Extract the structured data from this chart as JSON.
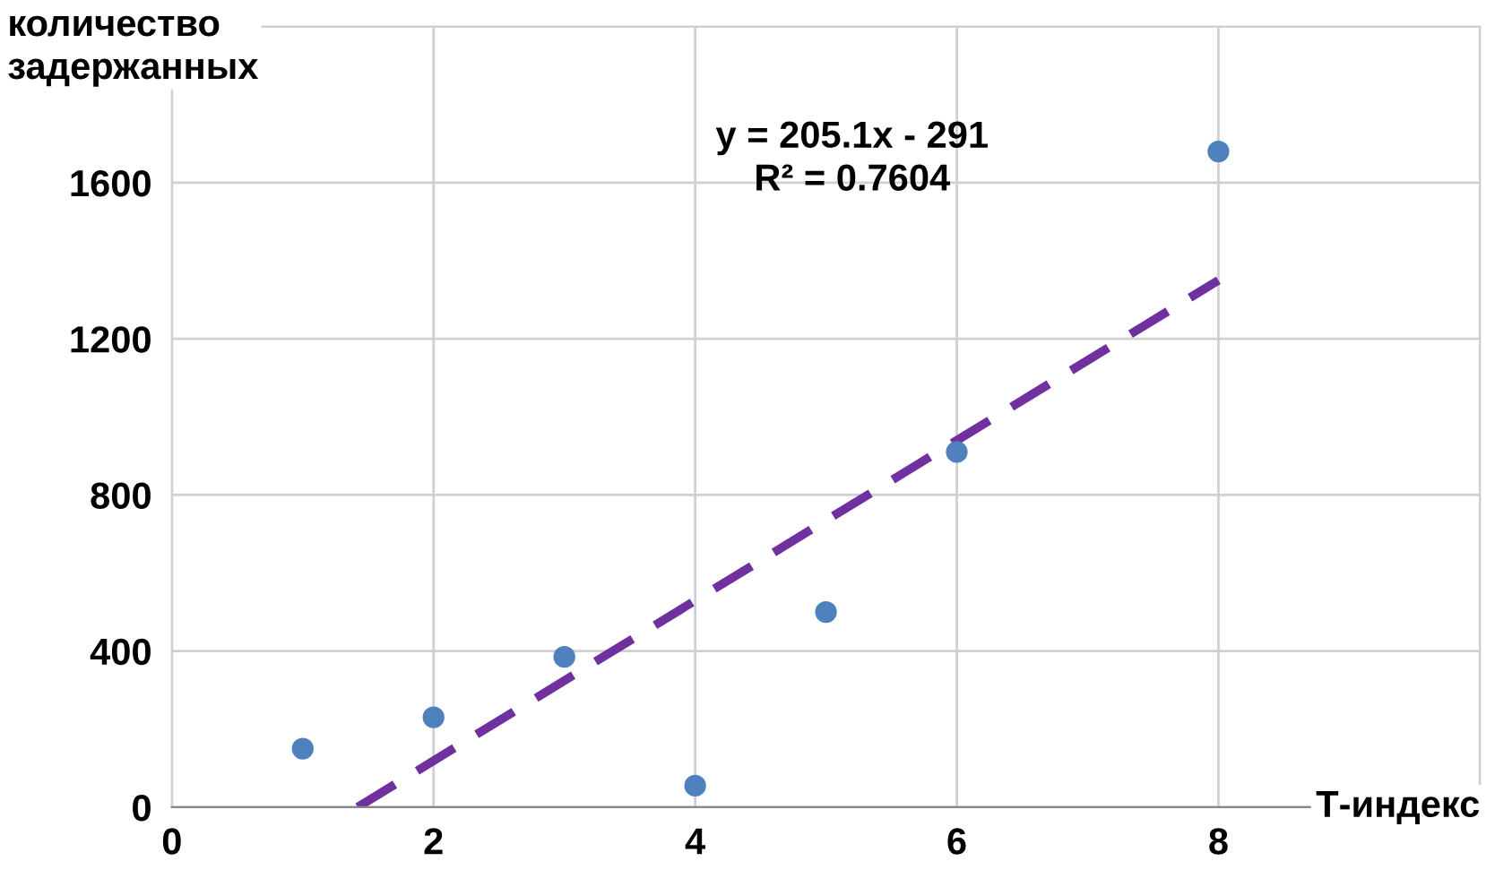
{
  "chart_data": {
    "type": "scatter",
    "xlabel": "Т-индекс",
    "ylabel": "количество\nзадержанных",
    "series": [
      {
        "color": "#4f81bd",
        "x": [
          1,
          2,
          3,
          4,
          5,
          6,
          8
        ],
        "values": [
          150,
          230,
          385,
          55,
          500,
          910,
          1680
        ],
        "marker": "circle"
      },
      {
        "type": "line",
        "color": "#7030a0",
        "x": [
          1.42,
          8
        ],
        "values": [
          0,
          1350
        ],
        "line_style": "dashed",
        "marker": "none"
      }
    ],
    "annotations": [
      "y = 205.1x - 291\nR² = 0.7604"
    ],
    "xlim": [
      0,
      10
    ],
    "xticks": [
      0,
      2,
      4,
      6,
      8,
      {
        "value": 10,
        "label": null
      }
    ],
    "ylim": [
      0,
      2000
    ],
    "yticks": [
      0,
      400,
      800,
      1200,
      1600,
      {
        "value": 2000,
        "label": null
      }
    ],
    "grid": true,
    "legend": false
  }
}
